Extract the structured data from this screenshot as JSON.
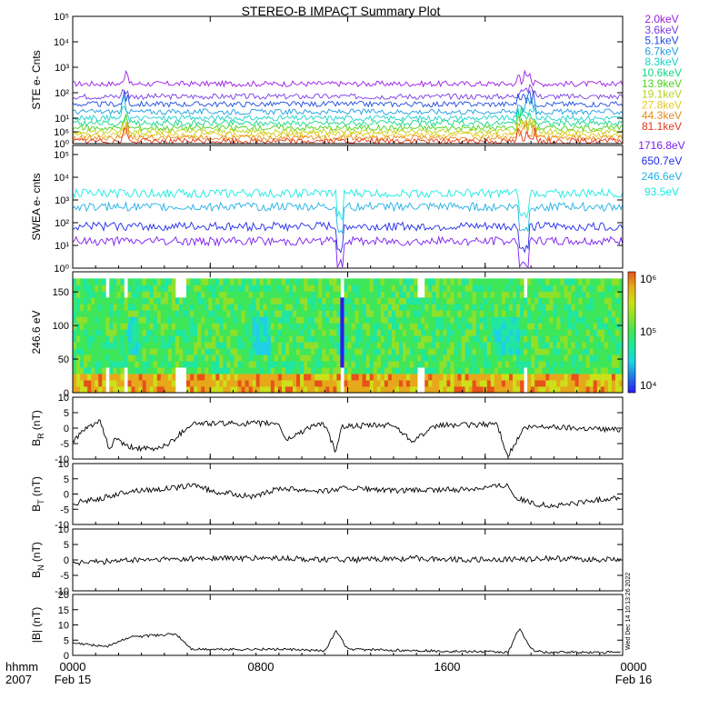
{
  "title": "STEREO-B IMPACT Summary Plot",
  "colors": {
    "frame": "#000000",
    "ste": [
      "#9b1ce6",
      "#7a3ae8",
      "#1f4de0",
      "#1f9ce6",
      "#19d2c8",
      "#12d68a",
      "#4ad21a",
      "#b8d21a",
      "#e6c81a",
      "#e68a1a",
      "#e6361a"
    ],
    "swea": [
      "#7a1cf0",
      "#1f2ae8",
      "#1fb0e6",
      "#18ece0"
    ]
  },
  "time_axis": {
    "row1": [
      "hhmm",
      "0000",
      "0800",
      "1600",
      "0000"
    ],
    "row2": [
      "2007",
      "Feb 15",
      "",
      "",
      "Feb 16"
    ]
  },
  "side_text": "Wed Dec 14 10:13:26 2022",
  "chart_data": [
    {
      "type": "line",
      "panel": "ste",
      "ylabel": "STE e- Cnts",
      "yscale": "log",
      "ylim_exp": [
        0,
        5
      ],
      "yticks": [
        "10⁰",
        "10¹",
        "10²",
        "10³",
        "10⁴",
        "10⁵"
      ],
      "series": [
        {
          "name": "2.0keV",
          "level": 2.35
        },
        {
          "name": "3.6keV",
          "level": 1.85
        },
        {
          "name": "5.1keV",
          "level": 1.55
        },
        {
          "name": "6.7keV",
          "level": 1.25
        },
        {
          "name": "8.3keV",
          "level": 1.0
        },
        {
          "name": "10.6keV",
          "level": 0.8
        },
        {
          "name": "13.9keV",
          "level": 0.62
        },
        {
          "name": "19.1keV",
          "level": 0.48
        },
        {
          "name": "27.8keV",
          "level": 0.35
        },
        {
          "name": "44.3keV",
          "level": 0.22
        },
        {
          "name": "81.1keV",
          "level": 0.1
        }
      ]
    },
    {
      "type": "line",
      "panel": "swea",
      "ylabel": "SWEA e- cnts",
      "yscale": "log",
      "ylim_exp": [
        0,
        5
      ],
      "yticks": [
        "10⁰",
        "10¹",
        "10²",
        "10³",
        "10⁴",
        "10⁵",
        "10⁶"
      ],
      "series": [
        {
          "name": "1716.8eV",
          "level": 1.1
        },
        {
          "name": "650.7eV",
          "level": 1.7
        },
        {
          "name": "246.6eV",
          "level": 2.5
        },
        {
          "name": "93.5eV",
          "level": 3.05
        }
      ]
    },
    {
      "type": "heatmap",
      "panel": "pad",
      "ylabel": "246.6 eV",
      "ylim": [
        0,
        180
      ],
      "yticks": [
        "0",
        "50",
        "100",
        "150"
      ],
      "colorbar": {
        "ticks": [
          "10⁶",
          "10⁵",
          "10⁴"
        ]
      }
    },
    {
      "type": "line",
      "panel": "br",
      "ylabel": "B",
      "ylabel_sub": "R",
      "ylabel_unit": " (nT)",
      "ylim": [
        -10,
        10
      ],
      "yticks": [
        "-10",
        "-5",
        "0",
        "5",
        "10"
      ],
      "x_hours": [
        0,
        0.8,
        1.2,
        1.6,
        1.9,
        2.3,
        3.5,
        4.2,
        5.2,
        9.0,
        9.3,
        10.5,
        11.0,
        11.5,
        11.7,
        14.0,
        14.8,
        16.0,
        17.5,
        18.5,
        19.0,
        19.7,
        20.5,
        23.9
      ],
      "values": [
        -4,
        1,
        2,
        -7,
        -3,
        -6,
        -7,
        -5,
        1.5,
        1.5,
        -4,
        1,
        1,
        -8,
        0.5,
        1,
        -4,
        1,
        1,
        1.5,
        -9,
        0,
        0.5,
        -0.5
      ]
    },
    {
      "type": "line",
      "panel": "bt",
      "ylabel": "B",
      "ylabel_sub": "T",
      "ylabel_unit": " (nT)",
      "ylim": [
        -10,
        10
      ],
      "yticks": [
        "-10",
        "-5",
        "0",
        "5",
        "10"
      ],
      "x_hours": [
        0,
        1.5,
        2.5,
        4.5,
        5.4,
        6.0,
        8.0,
        9.0,
        11.0,
        12.0,
        14.0,
        17.0,
        19.0,
        19.3,
        20.0,
        21.0,
        23.9
      ],
      "values": [
        -3,
        -1,
        1,
        2,
        3,
        1,
        -1,
        2,
        1,
        2,
        1,
        1.5,
        3,
        -1,
        -3,
        -4,
        -1
      ]
    },
    {
      "type": "line",
      "panel": "bn",
      "ylabel": "B",
      "ylabel_sub": "N",
      "ylabel_unit": " (nT)",
      "ylim": [
        -10,
        10
      ],
      "yticks": [
        "-10",
        "-5",
        "0",
        "5",
        "10"
      ],
      "x_hours": [
        0,
        3,
        6,
        9,
        12,
        15,
        18,
        21,
        23.9
      ],
      "values": [
        -1,
        0,
        0.5,
        0.5,
        0,
        0.5,
        0,
        0.5,
        0
      ]
    },
    {
      "type": "line",
      "panel": "bmag",
      "ylabel": "|B| (nT)",
      "ylim": [
        0,
        20
      ],
      "yticks": [
        "0",
        "5",
        "10",
        "15",
        "20"
      ],
      "x_hours": [
        0,
        1.5,
        2.5,
        4.5,
        5.2,
        9.0,
        11.0,
        11.5,
        12.0,
        19.0,
        19.5,
        20.0,
        20.5,
        23.9
      ],
      "values": [
        4,
        3,
        6,
        7,
        2,
        2,
        1.5,
        8,
        2,
        1,
        9,
        2,
        1,
        1
      ]
    }
  ]
}
